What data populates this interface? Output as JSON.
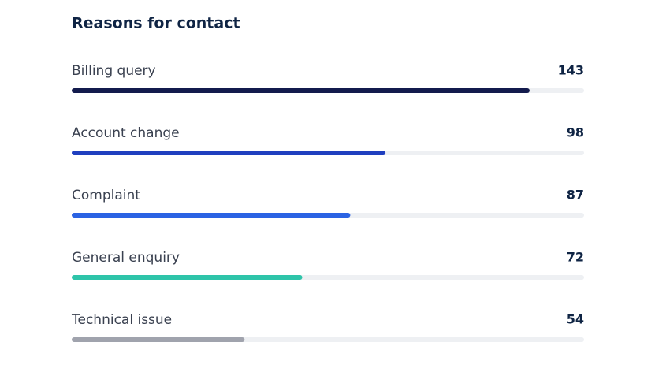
{
  "chart_data": {
    "type": "bar",
    "orientation": "horizontal",
    "title": "Reasons for contact",
    "categories": [
      "Billing query",
      "Account change",
      "Complaint",
      "General enquiry",
      "Technical issue"
    ],
    "values": [
      143,
      98,
      87,
      72,
      54
    ],
    "colors": [
      "#131b4d",
      "#1f3fbf",
      "#2b63e3",
      "#2ec4a9",
      "#a0a3ad"
    ],
    "track_color": "#eef0f3",
    "xlim": [
      0,
      160
    ]
  }
}
